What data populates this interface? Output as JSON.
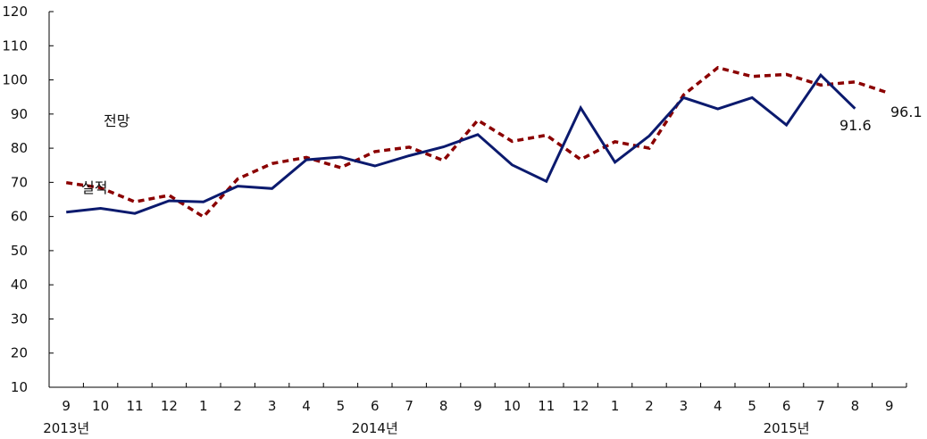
{
  "chart_data": {
    "type": "line",
    "categories": [
      "9",
      "10",
      "11",
      "12",
      "1",
      "2",
      "3",
      "4",
      "5",
      "6",
      "7",
      "8",
      "9",
      "10",
      "11",
      "12",
      "1",
      "2",
      "3",
      "4",
      "5",
      "6",
      "7",
      "8",
      "9"
    ],
    "year_labels": [
      {
        "index": 0,
        "label": "2013년"
      },
      {
        "index": 9,
        "label": "2014년"
      },
      {
        "index": 21,
        "label": "2015년"
      }
    ],
    "ylim": [
      10,
      120
    ],
    "yticks": [
      10,
      20,
      30,
      40,
      50,
      60,
      70,
      80,
      90,
      100,
      110,
      120
    ],
    "grid": false,
    "series": [
      {
        "name": "실적",
        "color": "#0b1a6e",
        "style": "solid",
        "values": [
          61.3,
          62.4,
          60.9,
          64.6,
          64.3,
          68.9,
          68.2,
          76.6,
          77.4,
          74.8,
          77.8,
          80.4,
          84.0,
          75.1,
          70.3,
          91.8,
          75.9,
          83.6,
          94.8,
          91.5,
          94.8,
          86.8,
          101.4,
          91.6,
          null
        ],
        "end_label": "91.6"
      },
      {
        "name": "전망",
        "color": "#8b0000",
        "style": "dashed",
        "values": [
          69.9,
          68.4,
          64.3,
          66.2,
          59.9,
          71.0,
          75.5,
          77.3,
          74.3,
          79.0,
          80.3,
          76.4,
          88.2,
          82.0,
          83.8,
          76.7,
          81.9,
          80.0,
          95.6,
          103.6,
          101.0,
          101.6,
          98.5,
          99.4,
          96.1
        ],
        "end_label": "96.1"
      }
    ]
  }
}
